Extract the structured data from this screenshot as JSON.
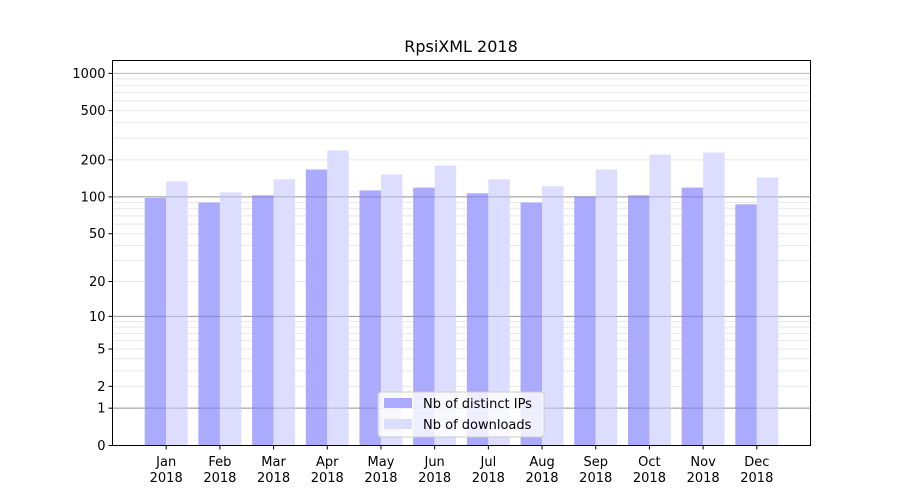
{
  "chart_data": {
    "type": "bar",
    "title": "RpsiXML 2018",
    "xlabel": "",
    "ylabel": "",
    "y_scale": "log10(y+1)",
    "ylim": [
      0,
      1270
    ],
    "grid": true,
    "legend_placement": "lower-center",
    "categories": [
      "Jan\n2018",
      "Feb\n2018",
      "Mar\n2018",
      "Apr\n2018",
      "May\n2018",
      "Jun\n2018",
      "Jul\n2018",
      "Aug\n2018",
      "Sep\n2018",
      "Oct\n2018",
      "Nov\n2018",
      "Dec\n2018"
    ],
    "y_ticks": [
      0,
      1,
      2,
      5,
      10,
      20,
      50,
      100,
      200,
      500,
      1000
    ],
    "series": [
      {
        "name": "Nb of distinct IPs",
        "color": "#aaaaff",
        "values": [
          98,
          90,
          103,
          167,
          113,
          119,
          107,
          90,
          101,
          103,
          119,
          87
        ]
      },
      {
        "name": "Nb of downloads",
        "color": "#ddddff",
        "values": [
          134,
          109,
          139,
          238,
          152,
          180,
          139,
          122,
          167,
          221,
          229,
          144
        ]
      }
    ]
  }
}
